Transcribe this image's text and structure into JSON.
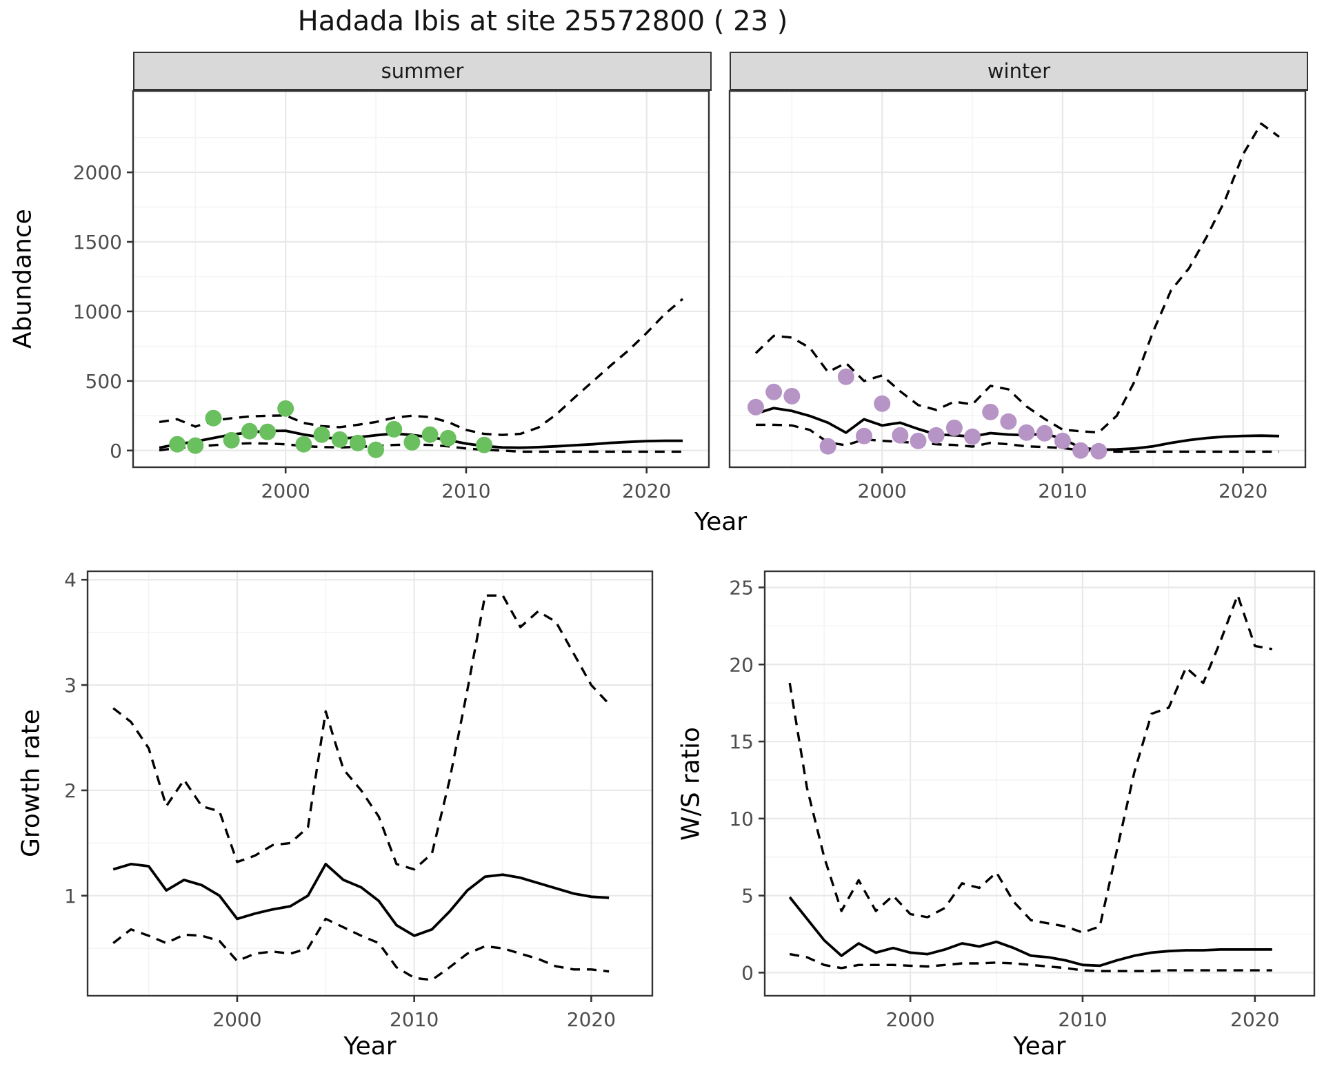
{
  "page": {
    "title": "Hadada Ibis at site 25572800 ( 23 )",
    "background": "#ffffff"
  },
  "styles": {
    "summer_point_color": "#6abf5e",
    "winter_point_color": "#b794c6",
    "line_color": "#000000",
    "strip_background": "#d9d9d9",
    "grid_major": "#e8e8e8",
    "grid_minor": "#f4f4f4",
    "axis_color": "#333333",
    "tick_label_color": "#4d4d4d"
  },
  "chart_data": [
    {
      "id": "abundance-summer",
      "type": "line",
      "facet_label": "summer",
      "xlabel": "Year",
      "ylabel": "Abundance",
      "xlim": [
        1991.55,
        2023.45
      ],
      "ylim": [
        -120,
        2585
      ],
      "xticks": [
        2000,
        2010,
        2020
      ],
      "yticks": [
        0,
        500,
        1000,
        1500,
        2000
      ],
      "xticks_minor": [
        1995,
        2005,
        2015
      ],
      "yticks_minor": [
        250,
        750,
        1250,
        1750,
        2250
      ],
      "grid": true,
      "legend": "none",
      "series": [
        {
          "name": "ci-upper",
          "style": "dashed",
          "x": [
            1993,
            1994,
            1995,
            1996,
            1997,
            1998,
            1999,
            2000,
            2001,
            2002,
            2003,
            2004,
            2005,
            2006,
            2007,
            2008,
            2009,
            2010,
            2011,
            2012,
            2013,
            2014,
            2015,
            2016,
            2017,
            2018,
            2019,
            2020,
            2021,
            2022
          ],
          "y": [
            205,
            225,
            172,
            215,
            232,
            245,
            250,
            252,
            198,
            175,
            168,
            185,
            205,
            235,
            250,
            240,
            205,
            148,
            120,
            112,
            120,
            165,
            260,
            380,
            495,
            610,
            720,
            845,
            980,
            1090
          ]
        },
        {
          "name": "ci-lower",
          "style": "dashed",
          "x": [
            1993,
            1994,
            1995,
            1996,
            1997,
            1998,
            1999,
            2000,
            2001,
            2002,
            2003,
            2004,
            2005,
            2006,
            2007,
            2008,
            2009,
            2010,
            2011,
            2012,
            2013,
            2014,
            2015,
            2016,
            2017,
            2018,
            2019,
            2020,
            2021,
            2022
          ],
          "y": [
            2,
            18,
            28,
            38,
            48,
            52,
            50,
            45,
            32,
            25,
            22,
            26,
            32,
            40,
            44,
            40,
            30,
            15,
            5,
            0,
            -8,
            -8,
            -8,
            -8,
            -8,
            -8,
            -8,
            -8,
            -8,
            -8
          ]
        },
        {
          "name": "median",
          "style": "solid",
          "x": [
            1993,
            1994,
            1995,
            1996,
            1997,
            1998,
            1999,
            2000,
            2001,
            2002,
            2003,
            2004,
            2005,
            2006,
            2007,
            2008,
            2009,
            2010,
            2011,
            2012,
            2013,
            2014,
            2015,
            2016,
            2017,
            2018,
            2019,
            2020,
            2021,
            2022
          ],
          "y": [
            20,
            45,
            65,
            90,
            115,
            130,
            140,
            142,
            115,
            95,
            85,
            95,
            110,
            122,
            112,
            96,
            75,
            50,
            32,
            22,
            20,
            24,
            30,
            38,
            45,
            55,
            62,
            68,
            70,
            70
          ]
        },
        {
          "name": "observed-counts",
          "style": "points",
          "color": "#6abf5e",
          "x": [
            1994,
            1995,
            1996,
            1997,
            1998,
            1999,
            2000,
            2001,
            2002,
            2003,
            2004,
            2005,
            2006,
            2007,
            2008,
            2009,
            2011
          ],
          "y": [
            45,
            35,
            233,
            74,
            139,
            134,
            302,
            45,
            114,
            79,
            54,
            5,
            153,
            59,
            114,
            89,
            40
          ]
        }
      ]
    },
    {
      "id": "abundance-winter",
      "type": "line",
      "facet_label": "winter",
      "xlabel": "Year",
      "ylabel": "Abundance",
      "xlim": [
        1991.55,
        2023.45
      ],
      "ylim": [
        -120,
        2585
      ],
      "xticks": [
        2000,
        2010,
        2020
      ],
      "yticks": [
        0,
        500,
        1000,
        1500,
        2000
      ],
      "xticks_minor": [
        1995,
        2005,
        2015
      ],
      "yticks_minor": [
        250,
        750,
        1250,
        1750,
        2250
      ],
      "grid": true,
      "legend": "none",
      "series": [
        {
          "name": "ci-upper",
          "style": "dashed",
          "x": [
            1993,
            1994,
            1995,
            1996,
            1997,
            1998,
            1999,
            2000,
            2001,
            2002,
            2003,
            2004,
            2005,
            2006,
            2007,
            2008,
            2009,
            2010,
            2011,
            2012,
            2013,
            2014,
            2015,
            2016,
            2017,
            2018,
            2019,
            2020,
            2021,
            2022
          ],
          "y": [
            700,
            825,
            812,
            738,
            564,
            629,
            500,
            540,
            426,
            327,
            292,
            351,
            332,
            465,
            440,
            317,
            228,
            150,
            138,
            130,
            250,
            500,
            850,
            1150,
            1310,
            1540,
            1800,
            2130,
            2350,
            2255
          ]
        },
        {
          "name": "ci-lower",
          "style": "dashed",
          "x": [
            1993,
            1994,
            1995,
            1996,
            1997,
            1998,
            1999,
            2000,
            2001,
            2002,
            2003,
            2004,
            2005,
            2006,
            2007,
            2008,
            2009,
            2010,
            2011,
            2012,
            2013,
            2014,
            2015,
            2016,
            2017,
            2018,
            2019,
            2020,
            2021,
            2022
          ],
          "y": [
            185,
            185,
            180,
            148,
            58,
            38,
            80,
            70,
            62,
            55,
            45,
            40,
            28,
            55,
            45,
            30,
            25,
            18,
            2,
            -5,
            -8,
            -8,
            -8,
            -8,
            -8,
            -8,
            -8,
            -8,
            -8,
            -8
          ]
        },
        {
          "name": "median",
          "style": "solid",
          "x": [
            1993,
            1994,
            1995,
            1996,
            1997,
            1998,
            1999,
            2000,
            2001,
            2002,
            2003,
            2004,
            2005,
            2006,
            2007,
            2008,
            2009,
            2010,
            2011,
            2012,
            2013,
            2014,
            2015,
            2016,
            2017,
            2018,
            2019,
            2020,
            2021,
            2022
          ],
          "y": [
            265,
            305,
            285,
            248,
            200,
            128,
            225,
            180,
            200,
            155,
            115,
            110,
            100,
            125,
            115,
            110,
            122,
            84,
            20,
            5,
            8,
            15,
            30,
            55,
            75,
            90,
            100,
            105,
            107,
            104
          ]
        },
        {
          "name": "observed-counts",
          "style": "points",
          "color": "#b794c6",
          "x": [
            1993,
            1994,
            1995,
            1997,
            1998,
            1999,
            2000,
            2001,
            2002,
            2003,
            2004,
            2005,
            2006,
            2007,
            2008,
            2009,
            2010,
            2011,
            2012
          ],
          "y": [
            312,
            421,
            391,
            30,
            530,
            104,
            337,
            109,
            69,
            109,
            163,
            99,
            277,
            208,
            129,
            124,
            69,
            0,
            -5
          ]
        }
      ]
    },
    {
      "id": "growth-rate",
      "type": "line",
      "facet_label": "",
      "xlabel": "Year",
      "ylabel": "Growth rate",
      "xlim": [
        1991.55,
        2023.45
      ],
      "ylim": [
        0.05,
        4.08
      ],
      "xticks": [
        2000,
        2010,
        2020
      ],
      "yticks": [
        1,
        2,
        3,
        4
      ],
      "xticks_minor": [
        1995,
        2005,
        2015
      ],
      "yticks_minor": [
        0.5,
        1.5,
        2.5,
        3.5
      ],
      "grid": true,
      "legend": "none",
      "series": [
        {
          "name": "ci-upper",
          "style": "dashed",
          "x": [
            1993,
            1994,
            1995,
            1996,
            1997,
            1998,
            1999,
            2000,
            2001,
            2002,
            2003,
            2004,
            2005,
            2006,
            2007,
            2008,
            2009,
            2010,
            2011,
            2012,
            2013,
            2014,
            2015,
            2016,
            2017,
            2018,
            2019,
            2020,
            2021
          ],
          "y": [
            2.78,
            2.65,
            2.4,
            1.85,
            2.1,
            1.85,
            1.8,
            1.32,
            1.38,
            1.48,
            1.5,
            1.65,
            2.75,
            2.2,
            2.0,
            1.75,
            1.3,
            1.25,
            1.4,
            2.1,
            2.95,
            3.85,
            3.85,
            3.55,
            3.7,
            3.6,
            3.3,
            3.0,
            2.82
          ]
        },
        {
          "name": "ci-lower",
          "style": "dashed",
          "x": [
            1993,
            1994,
            1995,
            1996,
            1997,
            1998,
            1999,
            2000,
            2001,
            2002,
            2003,
            2004,
            2005,
            2006,
            2007,
            2008,
            2009,
            2010,
            2011,
            2012,
            2013,
            2014,
            2015,
            2016,
            2017,
            2018,
            2019,
            2020,
            2021
          ],
          "y": [
            0.55,
            0.68,
            0.62,
            0.55,
            0.63,
            0.62,
            0.57,
            0.38,
            0.45,
            0.47,
            0.45,
            0.5,
            0.78,
            0.7,
            0.62,
            0.55,
            0.32,
            0.22,
            0.2,
            0.32,
            0.45,
            0.52,
            0.5,
            0.45,
            0.4,
            0.33,
            0.3,
            0.3,
            0.28
          ]
        },
        {
          "name": "median",
          "style": "solid",
          "x": [
            1993,
            1994,
            1995,
            1996,
            1997,
            1998,
            1999,
            2000,
            2001,
            2002,
            2003,
            2004,
            2005,
            2006,
            2007,
            2008,
            2009,
            2010,
            2011,
            2012,
            2013,
            2014,
            2015,
            2016,
            2017,
            2018,
            2019,
            2020,
            2021
          ],
          "y": [
            1.25,
            1.3,
            1.28,
            1.05,
            1.15,
            1.1,
            1.0,
            0.78,
            0.83,
            0.87,
            0.9,
            1.0,
            1.3,
            1.15,
            1.08,
            0.95,
            0.72,
            0.62,
            0.68,
            0.85,
            1.05,
            1.18,
            1.2,
            1.17,
            1.12,
            1.07,
            1.02,
            0.99,
            0.98
          ]
        }
      ]
    },
    {
      "id": "ws-ratio",
      "type": "line",
      "facet_label": "",
      "xlabel": "Year",
      "ylabel": "W/S ratio",
      "xlim": [
        1991.55,
        2023.45
      ],
      "ylim": [
        -1.5,
        26.05
      ],
      "xticks": [
        2000,
        2010,
        2020
      ],
      "yticks": [
        0,
        5,
        10,
        15,
        20,
        25
      ],
      "xticks_minor": [
        1995,
        2005,
        2015
      ],
      "yticks_minor": [
        2.5,
        7.5,
        12.5,
        17.5,
        22.5
      ],
      "grid": true,
      "legend": "none",
      "series": [
        {
          "name": "ci-upper",
          "style": "dashed",
          "x": [
            1993,
            1994,
            1995,
            1996,
            1997,
            1998,
            1999,
            2000,
            2001,
            2002,
            2003,
            2004,
            2005,
            2006,
            2007,
            2008,
            2009,
            2010,
            2011,
            2012,
            2013,
            2014,
            2015,
            2016,
            2017,
            2018,
            2019,
            2020,
            2021
          ],
          "y": [
            18.8,
            12.0,
            7.5,
            4.0,
            6.0,
            4.0,
            5.0,
            3.8,
            3.6,
            4.2,
            5.8,
            5.5,
            6.5,
            4.6,
            3.4,
            3.2,
            3.0,
            2.6,
            3.0,
            8.0,
            13.0,
            16.8,
            17.2,
            19.8,
            18.8,
            21.5,
            24.5,
            21.2,
            21.0
          ]
        },
        {
          "name": "ci-lower",
          "style": "dashed",
          "x": [
            1993,
            1994,
            1995,
            1996,
            1997,
            1998,
            1999,
            2000,
            2001,
            2002,
            2003,
            2004,
            2005,
            2006,
            2007,
            2008,
            2009,
            2010,
            2011,
            2012,
            2013,
            2014,
            2015,
            2016,
            2017,
            2018,
            2019,
            2020,
            2021
          ],
          "y": [
            1.2,
            1.0,
            0.5,
            0.3,
            0.5,
            0.5,
            0.5,
            0.45,
            0.4,
            0.5,
            0.6,
            0.6,
            0.65,
            0.6,
            0.5,
            0.4,
            0.3,
            0.15,
            0.1,
            0.1,
            0.1,
            0.1,
            0.15,
            0.15,
            0.15,
            0.15,
            0.15,
            0.15,
            0.15
          ]
        },
        {
          "name": "median",
          "style": "solid",
          "x": [
            1993,
            1994,
            1995,
            1996,
            1997,
            1998,
            1999,
            2000,
            2001,
            2002,
            2003,
            2004,
            2005,
            2006,
            2007,
            2008,
            2009,
            2010,
            2011,
            2012,
            2013,
            2014,
            2015,
            2016,
            2017,
            2018,
            2019,
            2020,
            2021
          ],
          "y": [
            4.9,
            3.5,
            2.1,
            1.1,
            1.9,
            1.3,
            1.6,
            1.3,
            1.2,
            1.5,
            1.9,
            1.7,
            2.0,
            1.6,
            1.1,
            1.0,
            0.8,
            0.5,
            0.45,
            0.8,
            1.1,
            1.3,
            1.4,
            1.45,
            1.45,
            1.5,
            1.5,
            1.5,
            1.5
          ]
        }
      ]
    }
  ]
}
